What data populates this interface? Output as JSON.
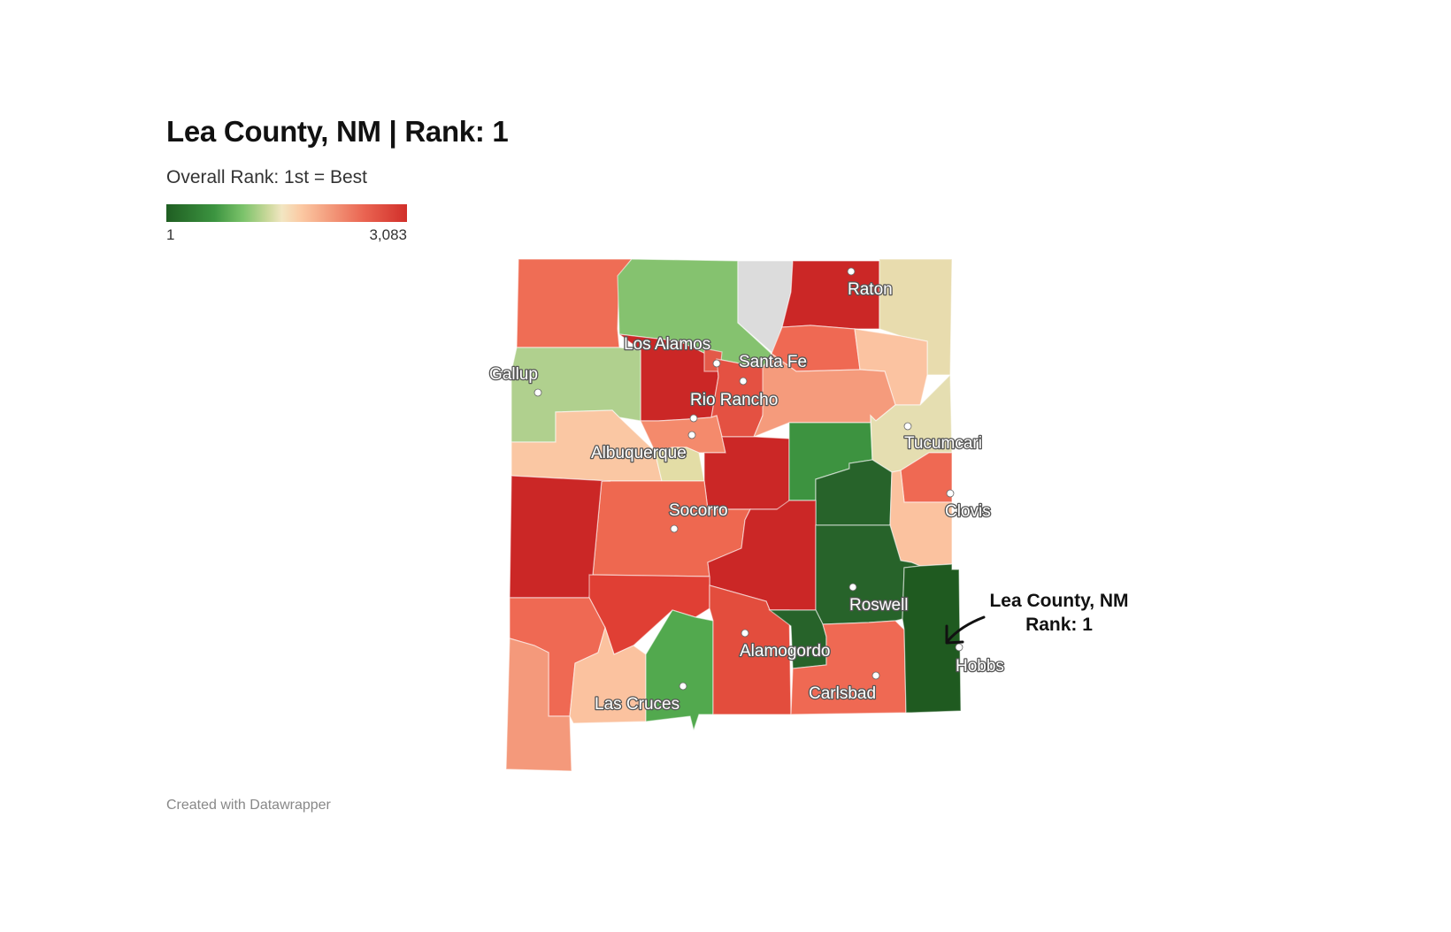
{
  "title": "Lea County, NM | Rank: 1",
  "subtitle": "Overall Rank: 1st = Best",
  "legend": {
    "min_label": "1",
    "max_label": "3,083",
    "colors": [
      "#1f5e22",
      "#3c9440",
      "#7cc36b",
      "#c9d89a",
      "#f2e6c2",
      "#fbc9a3",
      "#f39b7c",
      "#ea6552",
      "#d12f2a"
    ]
  },
  "credit": "Created with Datawrapper",
  "cities": [
    {
      "name": "Raton"
    },
    {
      "name": "Los Alamos"
    },
    {
      "name": "Santa Fe"
    },
    {
      "name": "Gallup"
    },
    {
      "name": "Rio Rancho"
    },
    {
      "name": "Albuquerque"
    },
    {
      "name": "Tucumcari"
    },
    {
      "name": "Socorro"
    },
    {
      "name": "Clovis"
    },
    {
      "name": "Roswell"
    },
    {
      "name": "Alamogordo"
    },
    {
      "name": "Hobbs"
    },
    {
      "name": "Carlsbad"
    },
    {
      "name": "Las Cruces"
    }
  ],
  "annotation": {
    "line1": "Lea County, NM",
    "line2": "Rank: 1"
  }
}
